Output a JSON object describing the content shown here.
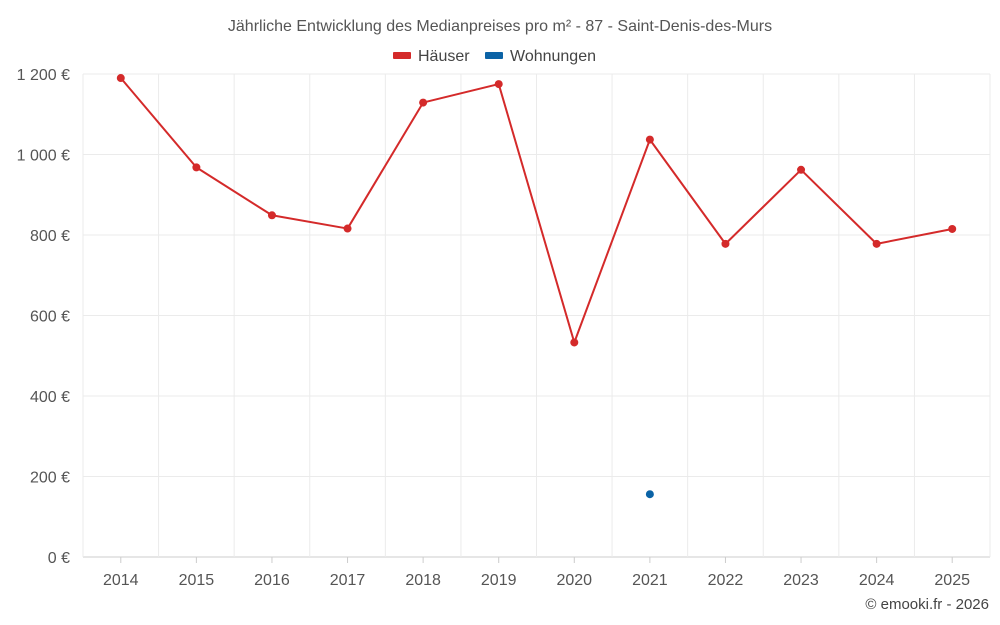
{
  "chart_data": {
    "type": "line",
    "title": "Jährliche Entwicklung des Medianpreises pro m² - 87 - Saint-Denis-des-Murs",
    "categories": [
      "2014",
      "2015",
      "2016",
      "2017",
      "2018",
      "2019",
      "2020",
      "2021",
      "2022",
      "2023",
      "2024",
      "2025"
    ],
    "series": [
      {
        "name": "Häuser",
        "color": "#d42a2a",
        "values": [
          1190,
          968,
          849,
          816,
          1129,
          1175,
          533,
          1037,
          778,
          962,
          778,
          815
        ]
      },
      {
        "name": "Wohnungen",
        "color": "#0b63a6",
        "values": [
          null,
          null,
          null,
          null,
          null,
          null,
          null,
          156,
          null,
          null,
          null,
          null
        ]
      }
    ],
    "ylim": [
      0,
      1200
    ],
    "yticks": [
      0,
      200,
      400,
      600,
      800,
      1000,
      1200
    ],
    "ytick_labels": [
      "0 €",
      "200 €",
      "400 €",
      "600 €",
      "800 €",
      "1 000 €",
      "1 200 €"
    ],
    "grid": true,
    "legend": "top-center",
    "credit": "© emooki.fr - 2026"
  }
}
